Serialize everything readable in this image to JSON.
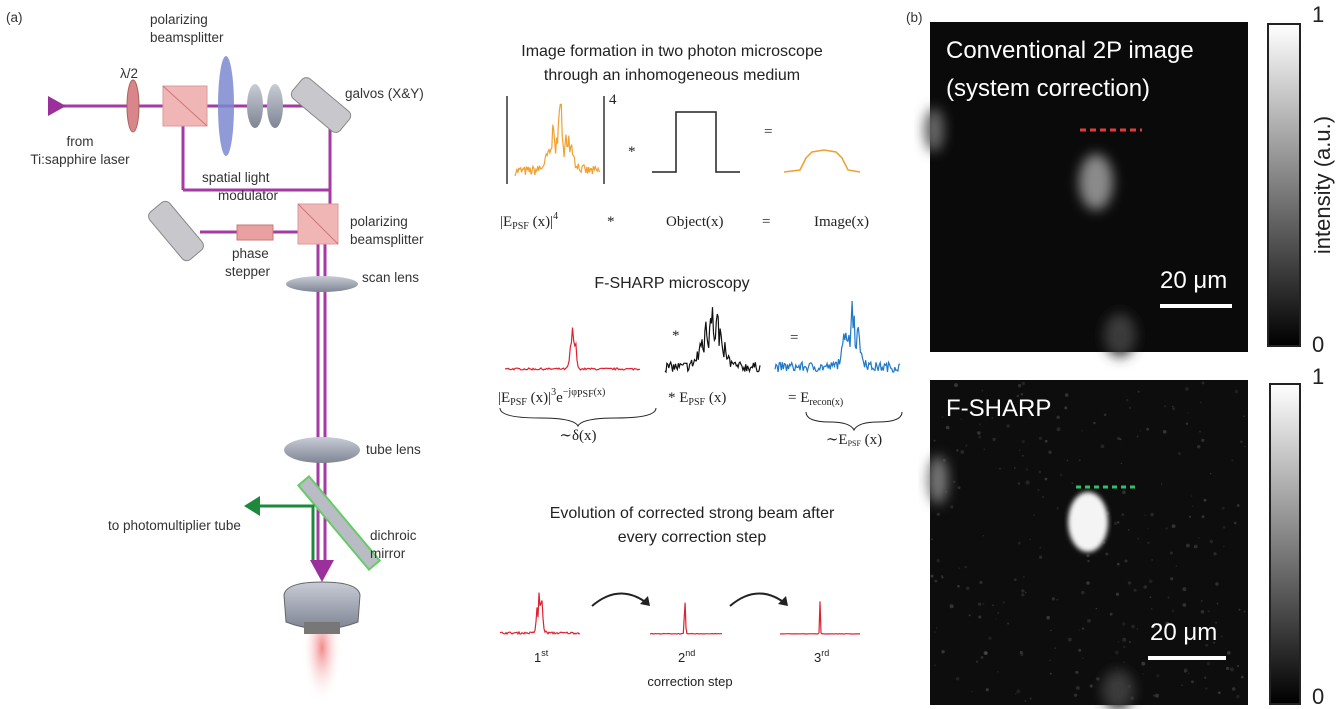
{
  "panel_a": {
    "label": "(a)",
    "setup": {
      "half_wave": "λ/2",
      "bs1": [
        "polarizing",
        "beamsplitter"
      ],
      "galvos": "galvos (X&Y)",
      "laser": [
        "from",
        "Ti:sapphire laser"
      ],
      "slm": [
        "spatial light",
        "modulator"
      ],
      "phase": [
        "phase",
        "stepper"
      ],
      "bs2": [
        "polarizing",
        "beamsplitter"
      ],
      "scan_lens": "scan lens",
      "tube_lens": "tube lens",
      "pmt": "to photomultiplier tube",
      "dichroic": [
        "dichroic",
        "mirror"
      ]
    },
    "formation": {
      "title": [
        "Image formation in two photon microscope",
        "through an inhomogeneous medium"
      ],
      "power": "4",
      "conv": "*",
      "equals": "=",
      "lhs": {
        "main": "|E",
        "sub": "PSF",
        "rest": " (x)|",
        "sup": "4"
      },
      "op1": "*",
      "object": "Object(x)",
      "op2": "=",
      "image": "Image(x)"
    },
    "fsharp": {
      "title": "F-SHARP microscopy",
      "conv": "*",
      "equals": "=",
      "lhs": {
        "main": "|E",
        "sub": "PSF",
        "rest": " (x)|",
        "sup": "3",
        "exp": "e",
        "expsup": "−jφ",
        "expsub": "PSF",
        "expend": "(x)"
      },
      "brace1": "∼δ(x)",
      "mid": {
        "op": "* ",
        "main": "E",
        "sub": "PSF",
        "rest": " (x)"
      },
      "rhs": {
        "op": "= ",
        "main": "E",
        "sub": "recon(x)"
      },
      "brace2": {
        "main": "∼E",
        "sub": "PSF",
        "rest": " (x)"
      }
    },
    "evolution": {
      "title": [
        "Evolution of corrected strong beam after",
        "every correction step"
      ],
      "steps": [
        {
          "n": "1",
          "sup": "st"
        },
        {
          "n": "2",
          "sup": "nd"
        },
        {
          "n": "3",
          "sup": "rd"
        }
      ],
      "caption": "correction step"
    }
  },
  "panel_b": {
    "label": "(b)",
    "top": {
      "title": [
        "Conventional 2P image",
        "(system correction)"
      ],
      "scale": "20 μm",
      "cb_max": "1",
      "cb_min": "0",
      "cb_label": "intensity (a.u.)"
    },
    "bottom": {
      "title": "F-SHARP",
      "scale": "20 μm",
      "cb_max": "1",
      "cb_min": "0"
    }
  }
}
